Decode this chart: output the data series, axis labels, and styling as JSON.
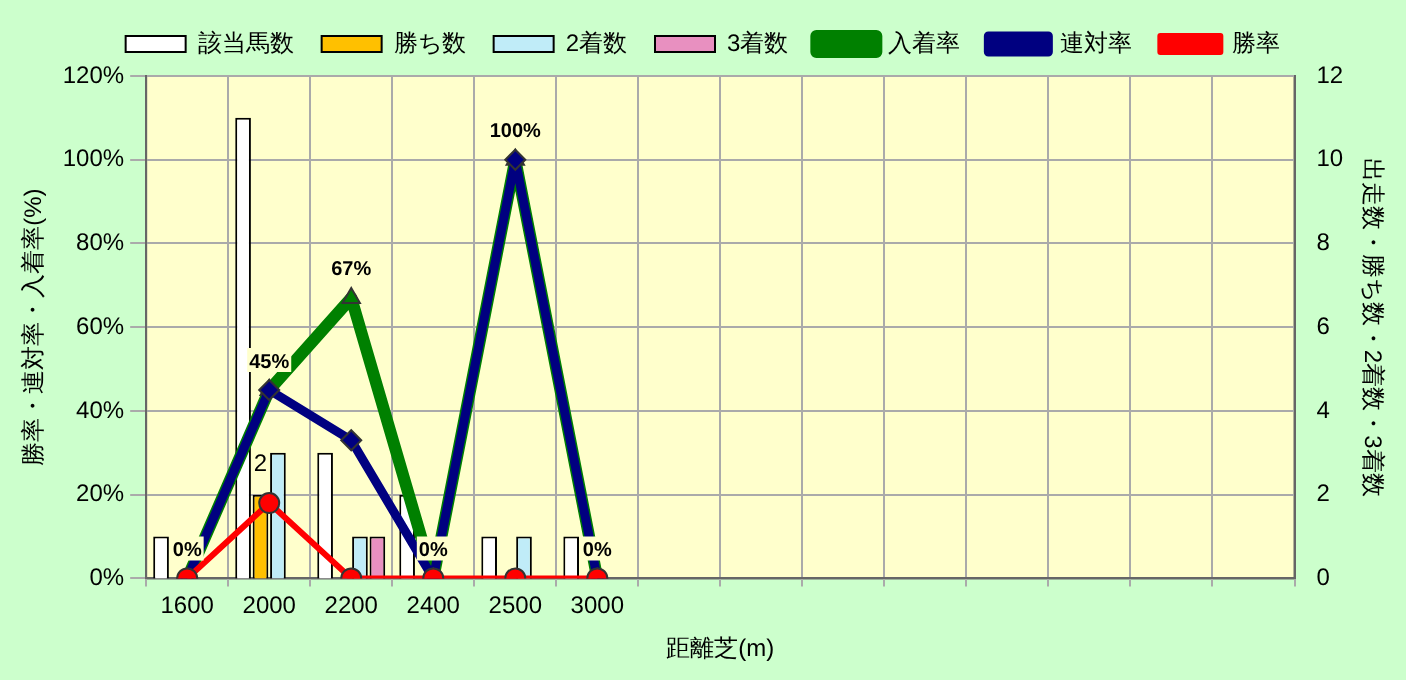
{
  "chart_data": {
    "type": "bar",
    "xlabel": "距離芝(m)",
    "ylabel": "勝率・連対率・入着率(%)",
    "y2label": "出走数・勝ち数・2着数・3着数",
    "categories": [
      "1600",
      "2000",
      "2200",
      "2400",
      "2500",
      "3000",
      null,
      null,
      null,
      null,
      null,
      null,
      null,
      null
    ],
    "series": [
      {
        "name": "該当馬数",
        "axis": "y2",
        "color": "#ffffff",
        "values": [
          1,
          11,
          3,
          2,
          1,
          1,
          null,
          null,
          null,
          null,
          null,
          null,
          null,
          null
        ]
      },
      {
        "name": "勝ち数",
        "axis": "y2",
        "color": "#ffc000",
        "values": [
          0,
          2,
          0,
          0,
          0,
          0,
          null,
          null,
          null,
          null,
          null,
          null,
          null,
          null
        ],
        "value_labels": [
          null,
          "2",
          null,
          null,
          null,
          null,
          null,
          null,
          null,
          null,
          null,
          null,
          null,
          null
        ]
      },
      {
        "name": "2着数",
        "axis": "y2",
        "color": "#c0ecf8",
        "values": [
          0,
          3,
          1,
          0,
          1,
          0,
          null,
          null,
          null,
          null,
          null,
          null,
          null,
          null
        ]
      },
      {
        "name": "3着数",
        "axis": "y2",
        "color": "#e890c0",
        "values": [
          0,
          0,
          1,
          0,
          0,
          0,
          null,
          null,
          null,
          null,
          null,
          null,
          null,
          null
        ]
      },
      {
        "name": "入着率",
        "type": "line",
        "color": "#008000",
        "marker": "triangle",
        "values": [
          0,
          45,
          67,
          0,
          100,
          0,
          null,
          null,
          null,
          null,
          null,
          null,
          null,
          null
        ],
        "value_labels": [
          "0%",
          "45%",
          "67%",
          "0%",
          "100%",
          "0%",
          null,
          null,
          null,
          null,
          null,
          null,
          null,
          null
        ]
      },
      {
        "name": "連対率",
        "type": "line",
        "color": "#000080",
        "marker": "diamond",
        "values": [
          0,
          45,
          33,
          0,
          100,
          0,
          null,
          null,
          null,
          null,
          null,
          null,
          null,
          null
        ]
      },
      {
        "name": "勝率",
        "type": "line",
        "color": "#ff0000",
        "marker": "circle",
        "values": [
          0,
          18,
          0,
          0,
          0,
          0,
          null,
          null,
          null,
          null,
          null,
          null,
          null,
          null
        ]
      }
    ],
    "ylim": [
      0,
      120
    ],
    "yticks": [
      {
        "value": 0,
        "label": "0%"
      },
      {
        "value": 20,
        "label": "20%"
      },
      {
        "value": 40,
        "label": "40%"
      },
      {
        "value": 60,
        "label": "60%"
      },
      {
        "value": 80,
        "label": "80%"
      },
      {
        "value": 100,
        "label": "100%"
      },
      {
        "value": 120,
        "label": "120%"
      }
    ],
    "y2lim": [
      0,
      12
    ],
    "y2ticks": [
      0,
      2,
      4,
      6,
      8,
      10,
      12
    ],
    "grid": true,
    "legend": "top"
  }
}
